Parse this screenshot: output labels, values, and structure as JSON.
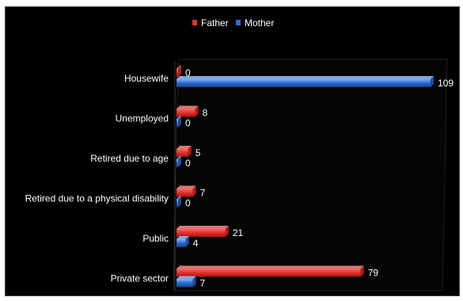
{
  "chart_data": {
    "type": "bar",
    "orientation": "horizontal",
    "categories": [
      "Housewife",
      "Unemployed",
      "Retired due to age",
      "Retired due to  a physical disability",
      "Public",
      "Private sector"
    ],
    "series": [
      {
        "name": "Father",
        "color": "#e8312f",
        "values": [
          0,
          8,
          5,
          7,
          21,
          79
        ]
      },
      {
        "name": "Mother",
        "color": "#2f6fd1",
        "values": [
          109,
          0,
          0,
          0,
          4,
          7
        ]
      }
    ],
    "xlim": [
      0,
      110
    ],
    "legend_position": "top-center",
    "grid": false
  }
}
